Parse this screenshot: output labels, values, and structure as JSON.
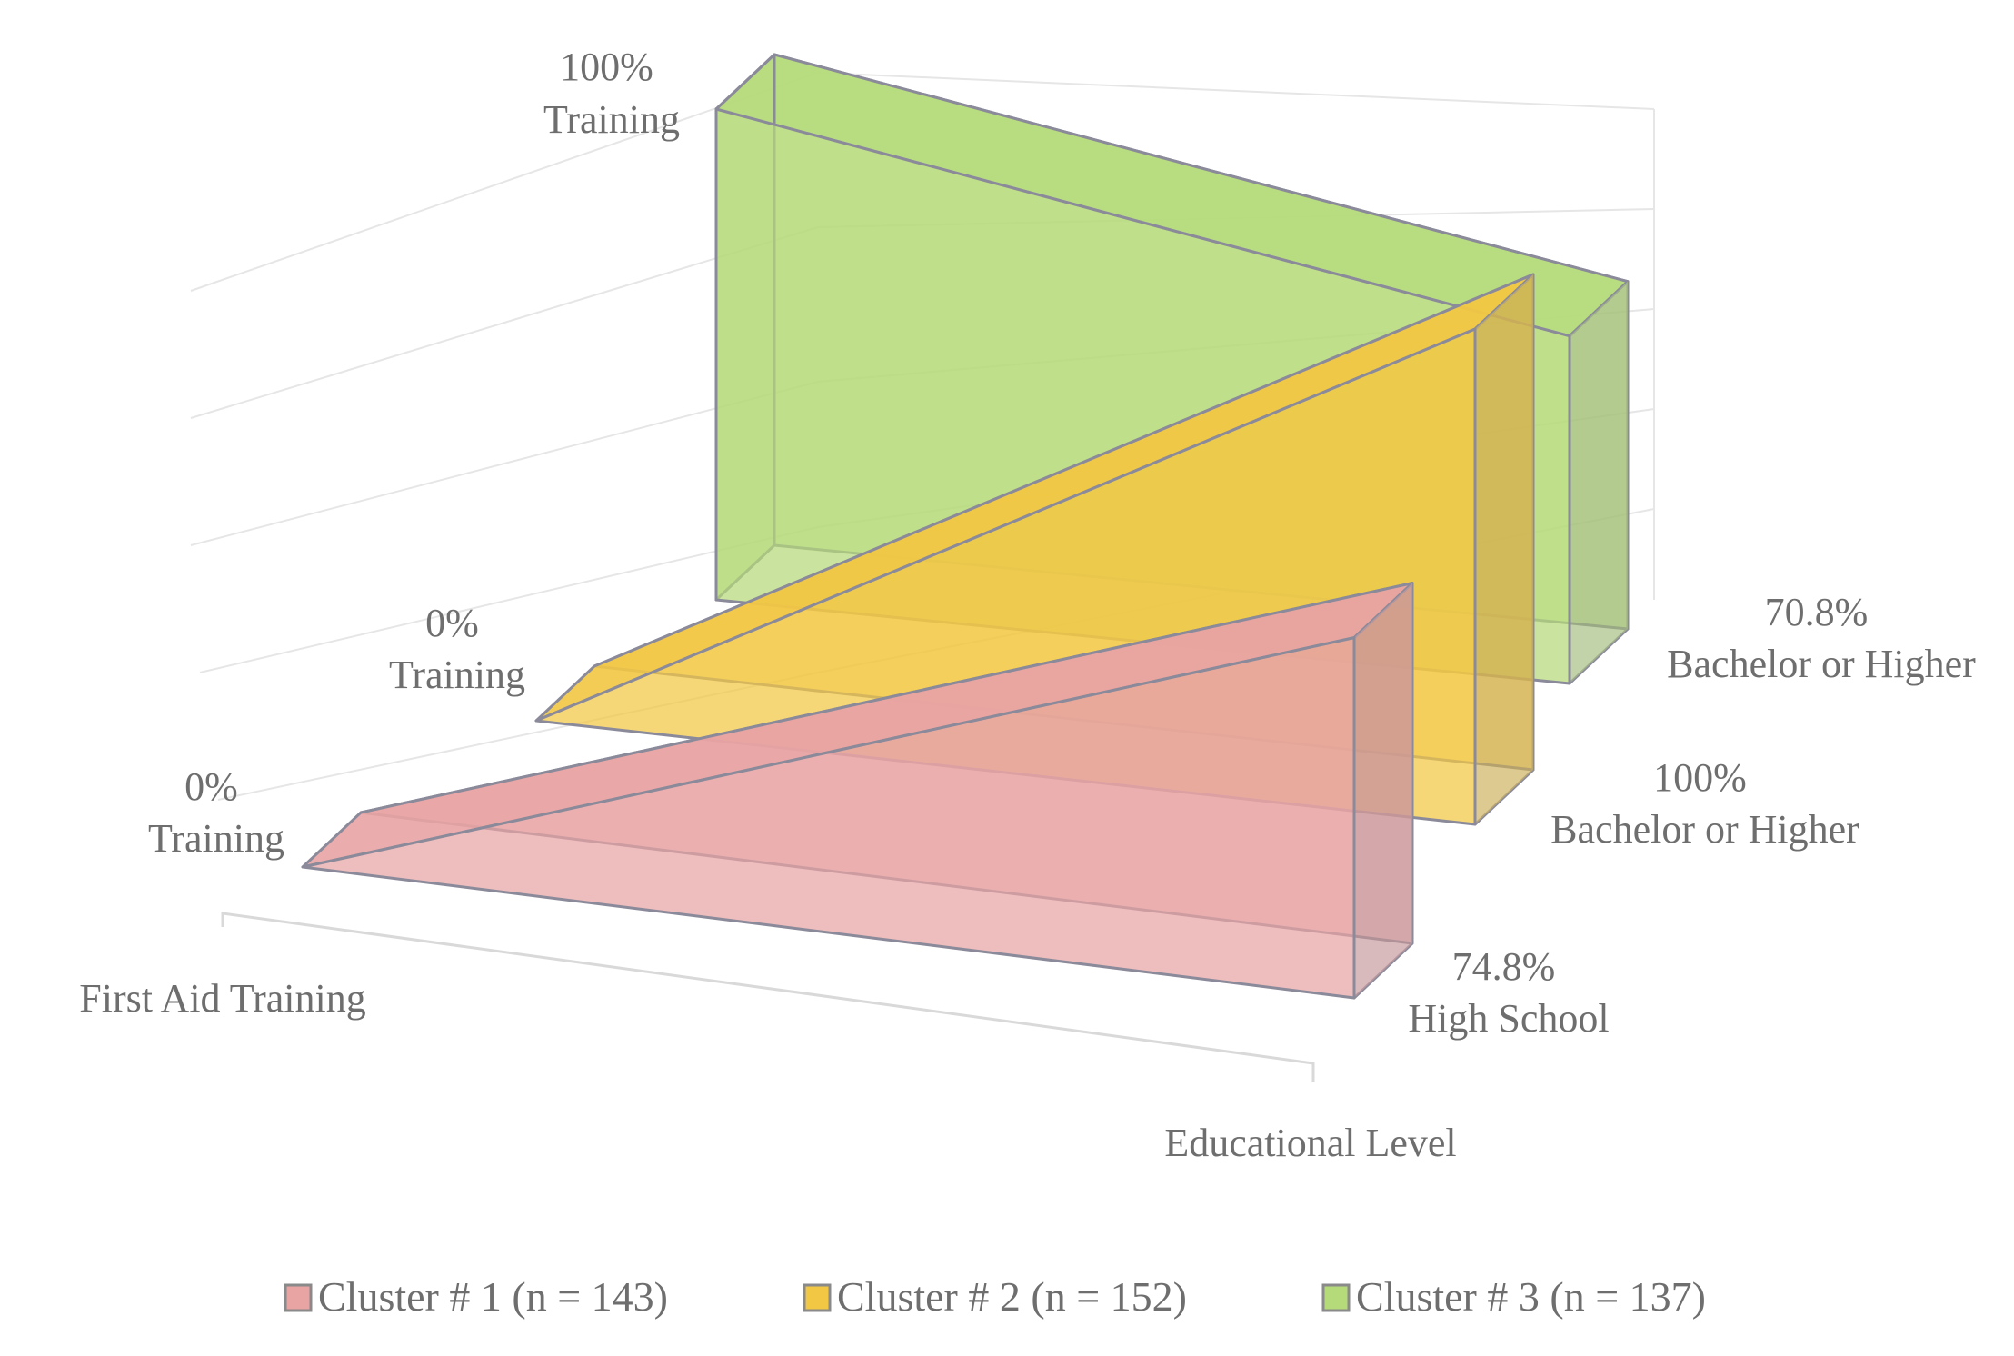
{
  "chart_data": {
    "type": "area",
    "x_axis_label": "Educational Level",
    "depth_axis_label": "First Aid Training",
    "series": [
      {
        "name": "Cluster # 1 (n = 143)",
        "color": "#e8a3a3",
        "start_value": 0,
        "end_value": 74.8,
        "start_label": [
          "0%",
          "Training"
        ],
        "end_label": [
          "74.8%",
          "High School"
        ]
      },
      {
        "name": "Cluster # 2 (n = 152)",
        "color": "#f2c744",
        "start_value": 0,
        "end_value": 100,
        "start_label": [
          "0%",
          "Training"
        ],
        "end_label": [
          "100%",
          "Bachelor or Higher"
        ]
      },
      {
        "name": "Cluster # 3 (n = 137)",
        "color": "#b5da7a",
        "start_value": 100,
        "end_value": 70.8,
        "start_label": [
          "100%",
          "Training"
        ],
        "end_label": [
          "70.8%",
          "Bachelor or Higher"
        ]
      }
    ],
    "legend_position": "bottom",
    "grid": true
  }
}
